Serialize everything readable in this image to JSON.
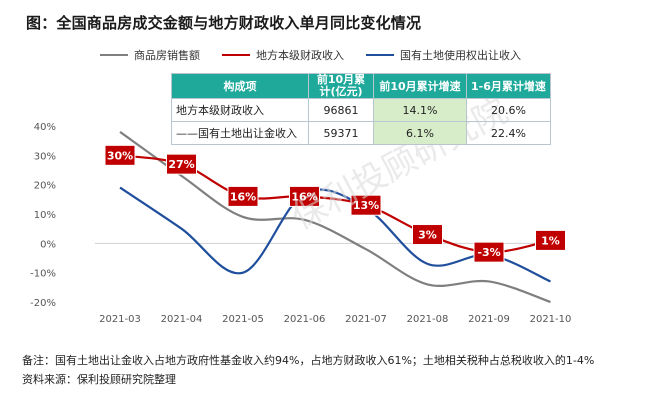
{
  "title": "图：全国商品房成交金额与地方财政收入单月同比变化情况",
  "legend": [
    {
      "label": "商品房销售额",
      "color": "#7f7f7f"
    },
    {
      "label": "地方本级财政收入",
      "color": "#c00000"
    },
    {
      "label": "国有土地使用权出让收入",
      "color": "#1f4e9c"
    }
  ],
  "table": {
    "headers": [
      "构成项",
      "前10月累计(亿元)",
      "前10月累计增速",
      "1-6月累计增速"
    ],
    "rows": [
      {
        "name": "地方本级财政收入",
        "cum": "96861",
        "growth": "14.1%",
        "h1": "20.6%"
      },
      {
        "name": "——国有土地出让金收入",
        "cum": "59371",
        "growth": "6.1%",
        "h1": "22.4%"
      }
    ]
  },
  "chart_data": {
    "type": "line",
    "x": [
      "2021-03",
      "2021-04",
      "2021-05",
      "2021-06",
      "2021-07",
      "2021-08",
      "2021-09",
      "2021-10"
    ],
    "ylim": [
      -20,
      40
    ],
    "yticks": [
      "40%",
      "30%",
      "20%",
      "10%",
      "0%",
      "-10%",
      "-20%"
    ],
    "series": [
      {
        "name": "商品房销售额",
        "color": "#7f7f7f",
        "values": [
          38,
          23,
          9,
          8,
          -2,
          -14,
          -13,
          -20
        ]
      },
      {
        "name": "地方本级财政收入",
        "color": "#c00000",
        "values": [
          30,
          27,
          16,
          16,
          13,
          3,
          -3,
          1
        ]
      },
      {
        "name": "国有土地使用权出让收入",
        "color": "#1f4e9c",
        "values": [
          19,
          5,
          -10,
          17,
          12,
          -7,
          -4,
          -13
        ]
      }
    ],
    "data_labels": [
      "30%",
      "27%",
      "16%",
      "16%",
      "13%",
      "3%",
      "-3%",
      "1%"
    ]
  },
  "footnotes": {
    "note": "备注：国有土地出让金收入占地方政府性基金收入约94%，占地方财政收入61%；土地相关税种占总税收收入的1-4%",
    "source": "资料来源：保利投顾研究院整理"
  }
}
